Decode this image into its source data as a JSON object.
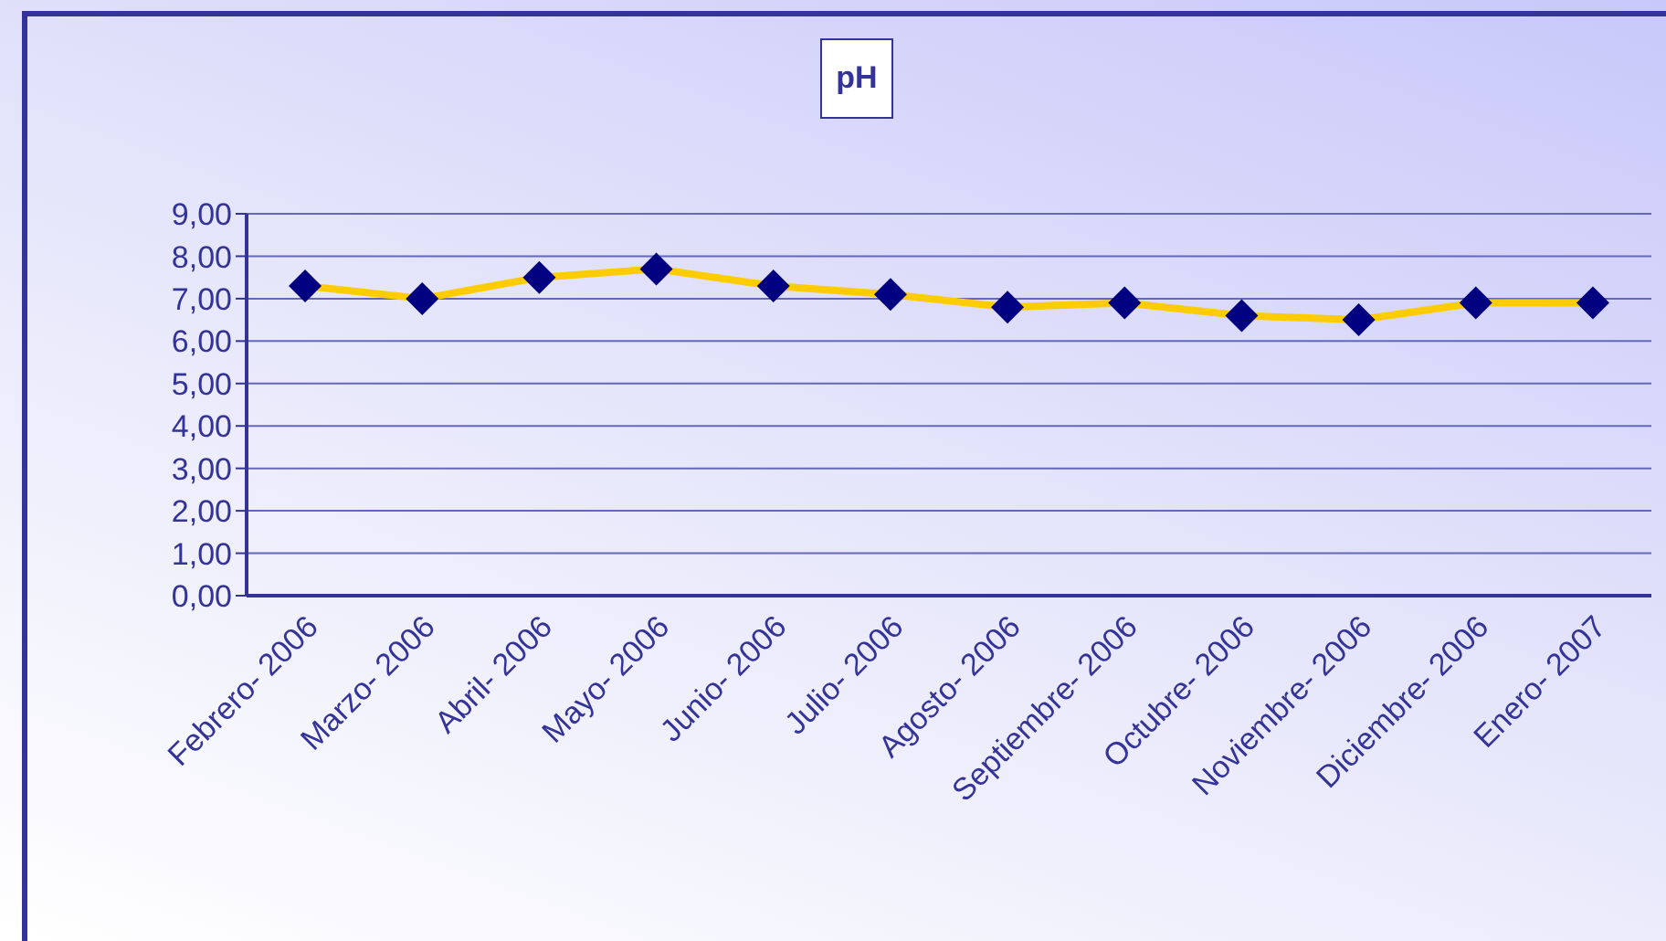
{
  "chart_data": {
    "type": "line",
    "title": "pH",
    "categories": [
      "Febrero- 2006",
      "Marzo- 2006",
      "Abril- 2006",
      "Mayo- 2006",
      "Junio- 2006",
      "Julio- 2006",
      "Agosto- 2006",
      "Septiembre- 2006",
      "Octubre- 2006",
      "Noviembre- 2006",
      "Diciembre- 2006",
      "Enero- 2007"
    ],
    "series": [
      {
        "color": "#ffcc00",
        "values": [
          7.3,
          7.0,
          7.5,
          7.7,
          7.3,
          7.1,
          6.8,
          6.9,
          6.6,
          6.5,
          6.9,
          6.9
        ]
      }
    ],
    "ylim": [
      0,
      9
    ],
    "yticks": [
      {
        "value": 0,
        "label": "0,00"
      },
      {
        "value": 1,
        "label": "1,00"
      },
      {
        "value": 2,
        "label": "2,00"
      },
      {
        "value": 3,
        "label": "3,00"
      },
      {
        "value": 4,
        "label": "4,00"
      },
      {
        "value": 5,
        "label": "5,00"
      },
      {
        "value": 6,
        "label": "6,00"
      },
      {
        "value": 7,
        "label": "7,00"
      },
      {
        "value": 8,
        "label": "8,00"
      },
      {
        "value": 9,
        "label": "9,00"
      }
    ],
    "grid": "y",
    "legend": false,
    "marker": "diamond",
    "line_style": "solid"
  }
}
